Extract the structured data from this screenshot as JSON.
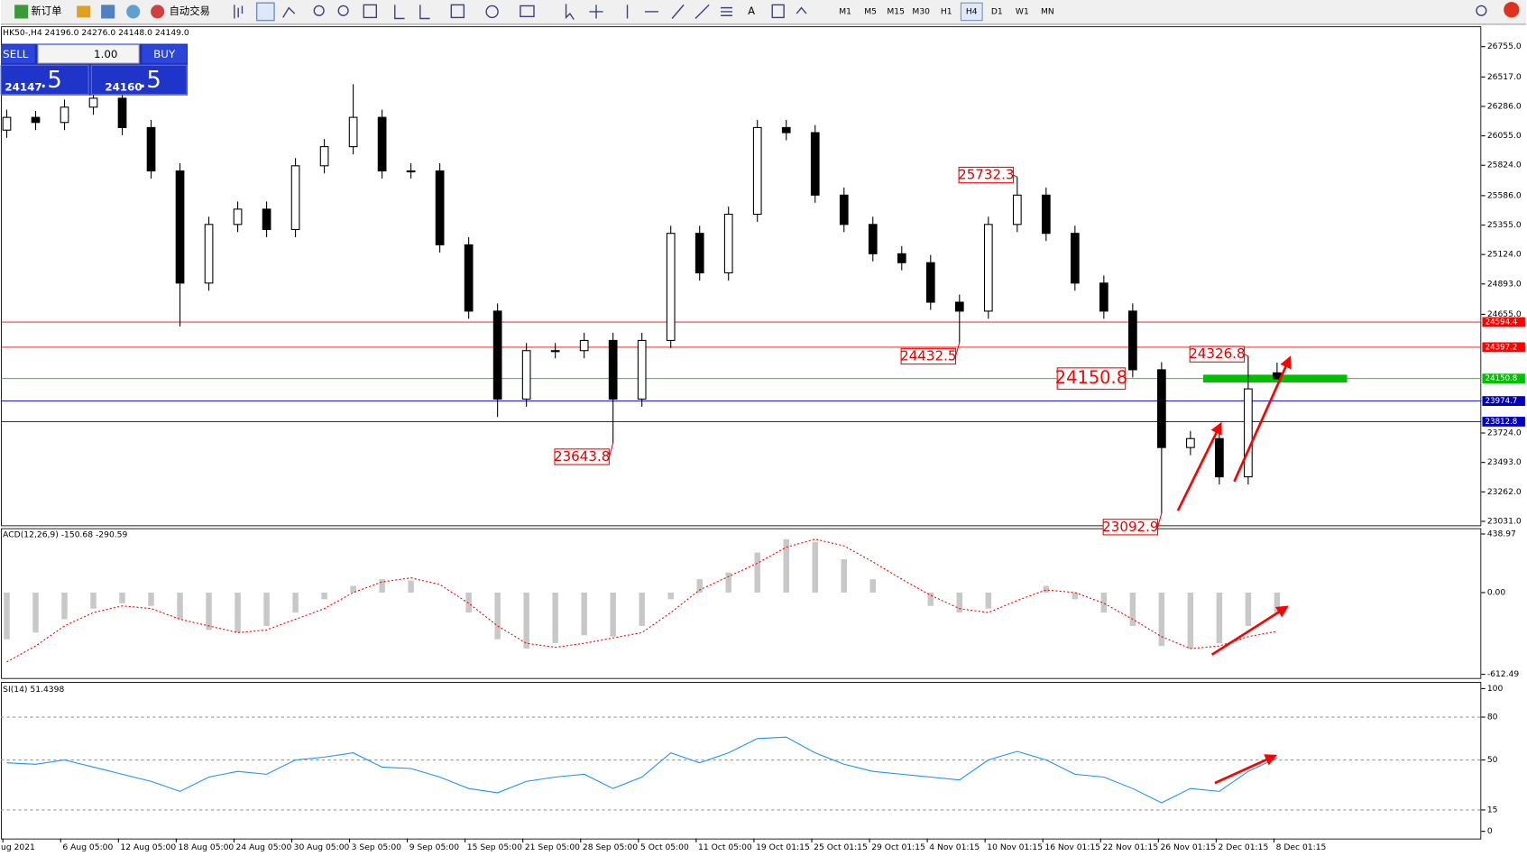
{
  "toolbar": {
    "new_order": "新订单",
    "auto_trading": "自动交易",
    "timeframes": [
      "M1",
      "M5",
      "M15",
      "M30",
      "H1",
      "H4",
      "D1",
      "W1",
      "MN"
    ]
  },
  "one_click": {
    "sell": "SELL",
    "volume": "1.00",
    "buy": "BUY",
    "bid_main": "24147",
    "bid_frac": ".5",
    "ask_main": "24160",
    "ask_frac": ".5"
  },
  "chart_data": [
    {
      "type": "candlestick",
      "title": "HK50-,H4 24196.0 24276.0 24148.0 24149.0",
      "open": [
        26100,
        26200,
        26160,
        26280,
        26350,
        26120,
        25780,
        24900,
        25360,
        25480,
        25320,
        25820,
        25970,
        26200,
        25780,
        25780,
        25200,
        24680,
        23990,
        24370,
        24370,
        24450,
        23990,
        24450,
        25290,
        24980,
        25440,
        26120,
        26080,
        25590,
        25360,
        25130,
        25060,
        24750,
        24680,
        25360,
        25590,
        25290,
        24900,
        24680,
        24220,
        23610,
        23680,
        23380,
        24196
      ],
      "high": [
        26260,
        26250,
        26340,
        26420,
        26400,
        26180,
        25840,
        25420,
        25540,
        25540,
        25880,
        26030,
        26460,
        26260,
        25840,
        25840,
        25260,
        24740,
        24430,
        24430,
        24510,
        24510,
        24510,
        25350,
        25350,
        25500,
        26180,
        26180,
        26140,
        25650,
        25420,
        25190,
        25120,
        24810,
        25420,
        25732.3,
        25650,
        25350,
        24960,
        24740,
        24280,
        23740,
        23740,
        24326.8,
        24276
      ],
      "low": [
        26040,
        26100,
        26100,
        26220,
        26060,
        25720,
        24560,
        24840,
        25300,
        25260,
        25260,
        25760,
        25910,
        25720,
        25720,
        25140,
        24620,
        23850,
        23930,
        24310,
        24310,
        23643.8,
        23930,
        24390,
        24920,
        24920,
        25380,
        26020,
        25530,
        25300,
        25070,
        25000,
        24690,
        24432.5,
        24620,
        25300,
        25230,
        24840,
        24620,
        24160,
        23092.9,
        23550,
        23320,
        23320,
        24148
      ],
      "close": [
        26200,
        26160,
        26280,
        26350,
        26120,
        25780,
        24900,
        25360,
        25480,
        25320,
        25820,
        25970,
        26200,
        25780,
        25780,
        25200,
        24680,
        23990,
        24370,
        24370,
        24450,
        23990,
        24450,
        25290,
        24980,
        25440,
        26120,
        26080,
        25590,
        25360,
        25130,
        25060,
        24750,
        24680,
        25360,
        25590,
        25290,
        24900,
        24680,
        24220,
        23610,
        23680,
        23380,
        24070,
        24149
      ],
      "ylim": [
        23000,
        26907
      ],
      "yticks": [
        {
          "value": 26755,
          "label": "26755.0"
        },
        {
          "value": 26517,
          "label": "26517.0"
        },
        {
          "value": 26286,
          "label": "26286.0"
        },
        {
          "value": 26055,
          "label": "26055.0"
        },
        {
          "value": 25824,
          "label": "25824.0"
        },
        {
          "value": 25586,
          "label": "25586.0"
        },
        {
          "value": 25355,
          "label": "25355.0"
        },
        {
          "value": 25124,
          "label": "25124.0"
        },
        {
          "value": 24893,
          "label": "24893.0"
        },
        {
          "value": 24655,
          "label": "24655.0"
        },
        {
          "value": 23724,
          "label": "23724.0"
        },
        {
          "value": 23493,
          "label": "23493.0"
        },
        {
          "value": 23262,
          "label": "23262.0"
        },
        {
          "value": 23031,
          "label": "23031.0"
        }
      ],
      "levels": [
        {
          "value": 24594.4,
          "color": "#ff0000"
        },
        {
          "value": 24397.2,
          "color": "#ff0000"
        },
        {
          "value": 24150.8,
          "color": "#00c000"
        },
        {
          "value": 23974.7,
          "color": "#0000c0"
        },
        {
          "value": 23812.8,
          "color": "#0000c0"
        }
      ],
      "annotations": [
        25732.3,
        24432.5,
        23643.8,
        24326.8,
        23092.9
      ],
      "xtick_labels": [
        "ug 2021",
        "6 Aug 05:00",
        "12 Aug 05:00",
        "18 Aug 05:00",
        "24 Aug 05:00",
        "30 Aug 05:00",
        "3 Sep 05:00",
        "9 Sep 05:00",
        "15 Sep 05:00",
        "21 Sep 05:00",
        "28 Sep 05:00",
        "5 Oct 05:00",
        "11 Oct 05:00",
        "19 Oct 01:15",
        "25 Oct 01:15",
        "29 Oct 01:15",
        "4 Nov 01:15",
        "10 Nov 01:15",
        "16 Nov 01:15",
        "22 Nov 01:15",
        "26 Nov 01:15",
        "2 Dec 01:15",
        "8 Dec 01:15"
      ]
    },
    {
      "type": "macd",
      "title": "ACD(12,26,9) -150.68 -290.59",
      "histogram": [
        -350,
        -300,
        -200,
        -120,
        -80,
        -100,
        -200,
        -280,
        -300,
        -250,
        -150,
        -50,
        50,
        100,
        90,
        0,
        -150,
        -350,
        -420,
        -380,
        -320,
        -330,
        -250,
        -50,
        100,
        150,
        300,
        400,
        380,
        250,
        100,
        0,
        -100,
        -150,
        -120,
        0,
        50,
        -50,
        -150,
        -250,
        -400,
        -420,
        -380,
        -250,
        -150.68
      ],
      "signal": [
        -520,
        -400,
        -250,
        -150,
        -100,
        -120,
        -200,
        -250,
        -300,
        -280,
        -200,
        -120,
        0,
        80,
        110,
        60,
        -80,
        -250,
        -380,
        -410,
        -380,
        -340,
        -300,
        -150,
        20,
        120,
        220,
        340,
        400,
        350,
        230,
        100,
        -20,
        -120,
        -150,
        -60,
        20,
        0,
        -80,
        -200,
        -330,
        -420,
        -400,
        -330,
        -290.59
      ],
      "ylim": [
        -640,
        475
      ],
      "yticks": [
        438.97,
        {
          "value": 0,
          "label": "0.00"
        },
        -612.49
      ]
    },
    {
      "type": "rsi",
      "title": "SI(14) 51.4398",
      "values": [
        48,
        47,
        50,
        45,
        40,
        35,
        28,
        38,
        42,
        40,
        50,
        52,
        55,
        45,
        44,
        38,
        30,
        27,
        35,
        38,
        40,
        30,
        38,
        55,
        48,
        55,
        65,
        66,
        55,
        47,
        42,
        40,
        38,
        36,
        50,
        56,
        50,
        40,
        38,
        30,
        20,
        30,
        28,
        42,
        51.4398
      ],
      "ylim": [
        -5,
        104
      ],
      "yticks": [
        100,
        80,
        50,
        15,
        0
      ],
      "grid": [
        80,
        50,
        15
      ]
    }
  ]
}
